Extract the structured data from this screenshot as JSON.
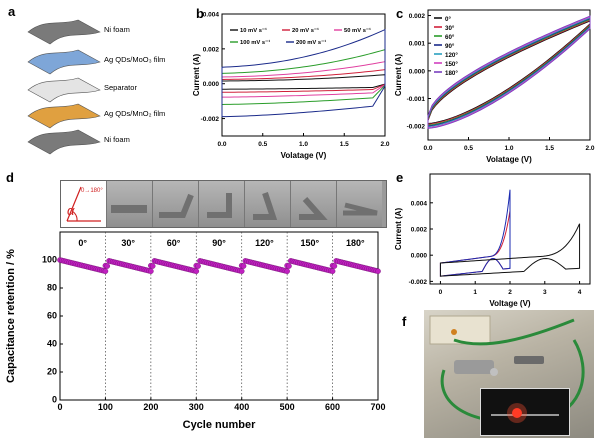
{
  "panels": {
    "a": {
      "letter": "a",
      "layers": [
        "Ni foam",
        "Ag QDs/MoO₃ film",
        "Separator",
        "Ag QDs/MnO₂ film",
        "Ni foam"
      ],
      "colors": [
        "#7a7a7a",
        "#7ea6d8",
        "#e4e4e4",
        "#e0a040",
        "#7a7a7a"
      ]
    },
    "f": {
      "letter": "f"
    }
  },
  "chart_data": [
    {
      "id": "b",
      "type": "line",
      "letter": "b",
      "xlabel": "Volatage (V)",
      "ylabel": "Current (A)",
      "xlim": [
        0,
        2.0
      ],
      "ylim": [
        -0.003,
        0.004
      ],
      "xticks": [
        "0.0",
        "0.5",
        "1.0",
        "1.5",
        "2.0"
      ],
      "yticks": [
        "-0.002",
        "0.000",
        "0.002",
        "0.004"
      ],
      "series": [
        {
          "name": "10 mV s⁻¹",
          "color": "#111111",
          "amp": 0.00045
        },
        {
          "name": "20 mV s⁻¹",
          "color": "#d0203a",
          "amp": 0.0007
        },
        {
          "name": "50 mV s⁻¹",
          "color": "#e040a0",
          "amp": 0.0011
        },
        {
          "name": "100 mV s⁻¹",
          "color": "#2a9d2a",
          "amp": 0.0017
        },
        {
          "name": "200 mV s⁻¹",
          "color": "#1a2a8a",
          "amp": 0.0027
        }
      ]
    },
    {
      "id": "c",
      "type": "line",
      "letter": "c",
      "xlabel": "Volatage (V)",
      "ylabel": "Current (A)",
      "xlim": [
        0,
        2.0
      ],
      "ylim": [
        -0.0025,
        0.0022
      ],
      "xticks": [
        "0.0",
        "0.5",
        "1.0",
        "1.5",
        "2.0"
      ],
      "yticks": [
        "-0.002",
        "-0.001",
        "0.000",
        "0.001",
        "0.002"
      ],
      "series": [
        {
          "name": "0°",
          "color": "#111111"
        },
        {
          "name": "30°",
          "color": "#d0203a"
        },
        {
          "name": "60°",
          "color": "#2a9d2a"
        },
        {
          "name": "90°",
          "color": "#1a2a8a"
        },
        {
          "name": "120°",
          "color": "#2aa0c0"
        },
        {
          "name": "150°",
          "color": "#d040c0"
        },
        {
          "name": "180°",
          "color": "#7a40c0"
        }
      ]
    },
    {
      "id": "d",
      "type": "scatter",
      "letter": "d",
      "xlabel": "Cycle number",
      "ylabel": "Capacitance retention / %",
      "xlim": [
        0,
        700
      ],
      "ylim": [
        0,
        120
      ],
      "xticks": [
        "0",
        "100",
        "200",
        "300",
        "400",
        "500",
        "600",
        "700"
      ],
      "yticks": [
        "0",
        "20",
        "40",
        "60",
        "80",
        "100"
      ],
      "segment_labels": [
        "0°",
        "30°",
        "60°",
        "90°",
        "120°",
        "150°",
        "180°"
      ],
      "retention_start": 100,
      "retention_end": 92,
      "marker_color": "#c020c0",
      "inset_angle_label": "0→180°",
      "inset_alpha": "α"
    },
    {
      "id": "e",
      "type": "line",
      "letter": "e",
      "xlabel": "Voltage (V)",
      "ylabel": "Current (A)",
      "xlim": [
        -0.3,
        4.3
      ],
      "ylim": [
        -0.0022,
        0.0062
      ],
      "xticks": [
        "0",
        "1",
        "2",
        "3",
        "4"
      ],
      "yticks": [
        "-0.002",
        "0.000",
        "0.002",
        "0.004"
      ],
      "series": [
        {
          "name": "single 0-2 V",
          "color": "#d0203a",
          "vmax": 2.0,
          "peak": 0.0035
        },
        {
          "name": "series 0-2 V",
          "color": "#1a2ab0",
          "vmax": 2.0,
          "peak": 0.0051
        },
        {
          "name": "single 0-4 V",
          "color": "#111111",
          "vmax": 4.0,
          "peak": 0.0025
        }
      ]
    }
  ]
}
